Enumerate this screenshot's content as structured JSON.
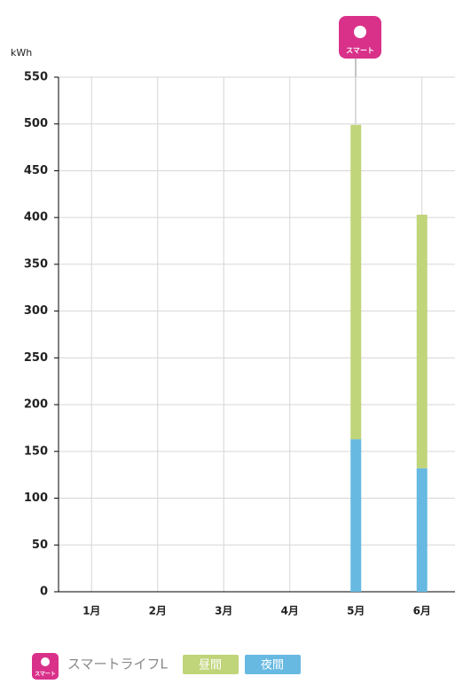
{
  "chart_data": {
    "type": "stacked_bar",
    "y_label": "kWh",
    "categories": [
      "1月",
      "2月",
      "3月",
      "4月",
      "5月",
      "6月"
    ],
    "series": [
      {
        "name": "夜間",
        "color": "#67b9e2",
        "values": [
          null,
          null,
          null,
          null,
          163,
          132
        ]
      },
      {
        "name": "昼間",
        "color": "#c0d47a",
        "values": [
          null,
          null,
          null,
          null,
          336,
          271
        ]
      }
    ],
    "ylim": [
      0,
      550
    ],
    "yticks": [
      0,
      50,
      100,
      150,
      200,
      250,
      300,
      350,
      400,
      450,
      500,
      550
    ],
    "grid": true,
    "marker_label": "スマート",
    "plan_name": "スマートライフL"
  }
}
